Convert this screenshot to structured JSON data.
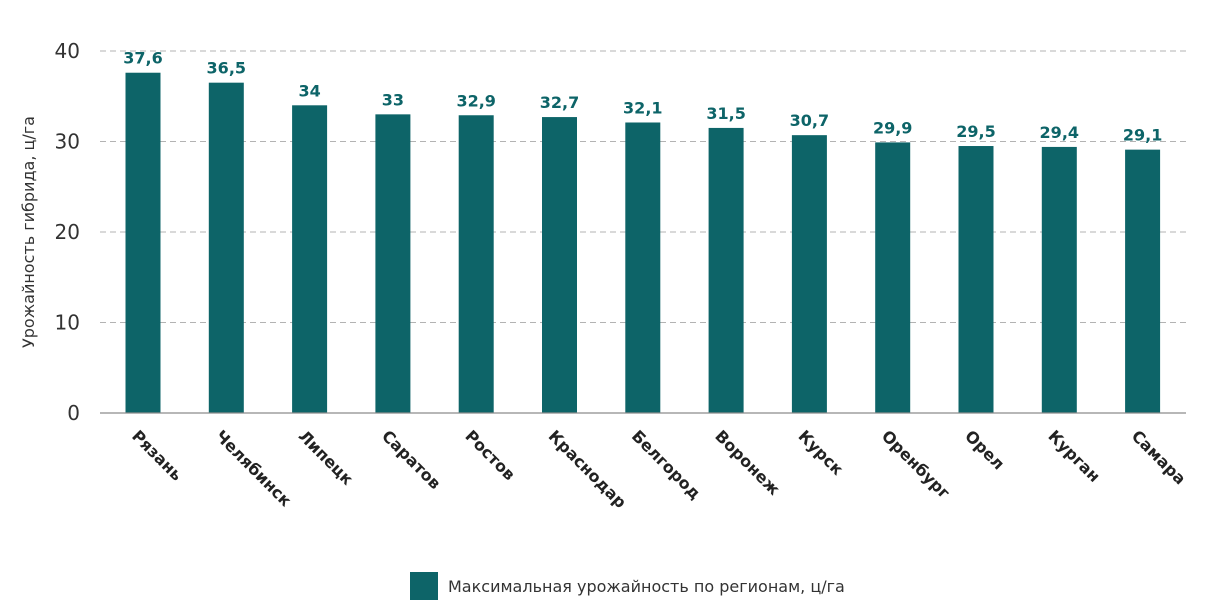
{
  "chart_data": {
    "type": "bar",
    "categories": [
      "Рязань",
      "Челябинск",
      "Липецк",
      "Саратов",
      "Ростов",
      "Краснодар",
      "Белгород",
      "Воронеж",
      "Курск",
      "Оренбург",
      "Орел",
      "Курган",
      "Самара"
    ],
    "series": [
      {
        "name": "Максимальная урожайность по регионам, ц/га",
        "values": [
          37.6,
          36.5,
          34,
          33,
          32.9,
          32.7,
          32.1,
          31.5,
          30.7,
          29.9,
          29.5,
          29.4,
          29.1
        ],
        "labels": [
          "37,6",
          "36,5",
          "34",
          "33",
          "32,9",
          "32,7",
          "32,1",
          "31,5",
          "30,7",
          "29,9",
          "29,5",
          "29,4",
          "29,1"
        ],
        "color": "#0d6468"
      }
    ],
    "title": "",
    "xlabel": "",
    "ylabel": "Урожайность гибрида, ц/га",
    "ylim": [
      0,
      40
    ],
    "yticks": [
      0,
      10,
      20,
      30,
      40
    ],
    "grid": true,
    "legend_position": "bottom-center"
  }
}
